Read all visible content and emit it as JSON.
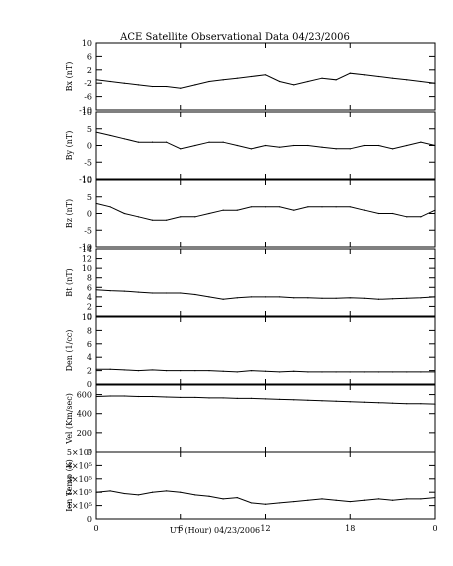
{
  "chart_data": {
    "type": "line",
    "title": "ACE Satellite Observational Data   04/23/2006",
    "xlabel": "UT (Hour)   04/23/2006",
    "x_tick_labels": [
      "0",
      "6",
      "12",
      "18",
      "0"
    ],
    "xlim": [
      0,
      24
    ],
    "panels": [
      {
        "ylabel": "Bx (nT)",
        "ylim": [
          -10,
          10
        ],
        "y_ticks": [
          -10,
          -6,
          -2,
          2,
          6,
          10
        ],
        "y_tick_labels": [
          "-10",
          "-6",
          "-2",
          "2",
          "6",
          "10"
        ],
        "x": [
          0,
          1,
          2,
          3,
          4,
          5,
          6,
          7,
          8,
          9,
          10,
          11,
          12,
          13,
          14,
          15,
          16,
          17,
          18,
          19,
          20,
          21,
          22,
          23,
          24
        ],
        "values": [
          -1,
          -1.5,
          -2,
          -2.5,
          -3,
          -3,
          -3.5,
          -2.5,
          -1.5,
          -1,
          -0.5,
          0,
          0.5,
          -1.5,
          -2.5,
          -1.5,
          -0.5,
          -1,
          1,
          0.5,
          0,
          -0.5,
          -1,
          -1.5,
          -2
        ]
      },
      {
        "ylabel": "By (nT)",
        "ylim": [
          -10,
          10
        ],
        "y_ticks": [
          -10,
          -5,
          0,
          5,
          10
        ],
        "y_tick_labels": [
          "-10",
          "-5",
          "0",
          "5",
          "10"
        ],
        "x": [
          0,
          1,
          2,
          3,
          4,
          5,
          6,
          7,
          8,
          9,
          10,
          11,
          12,
          13,
          14,
          15,
          16,
          17,
          18,
          19,
          20,
          21,
          22,
          23,
          24
        ],
        "values": [
          4,
          3,
          2,
          1,
          1,
          1,
          -1,
          0,
          1,
          1,
          0,
          -1,
          0,
          -0.5,
          0,
          0,
          -0.5,
          -1,
          -1,
          0,
          0,
          -1,
          0,
          1,
          0
        ]
      },
      {
        "ylabel": "Bz (nT)",
        "ylim": [
          -10,
          10
        ],
        "y_ticks": [
          -10,
          -5,
          0,
          5,
          10
        ],
        "y_tick_labels": [
          "-10",
          "-5",
          "0",
          "5",
          "10"
        ],
        "x": [
          0,
          1,
          2,
          3,
          4,
          5,
          6,
          7,
          8,
          9,
          10,
          11,
          12,
          13,
          14,
          15,
          16,
          17,
          18,
          19,
          20,
          21,
          22,
          23,
          24
        ],
        "values": [
          3,
          2,
          0,
          -1,
          -2,
          -2,
          -1,
          -1,
          0,
          1,
          1,
          2,
          2,
          2,
          1,
          2,
          2,
          2,
          2,
          1,
          0,
          0,
          -1,
          -1,
          1
        ]
      },
      {
        "ylabel": "Bt (nT)",
        "ylim": [
          0,
          14
        ],
        "y_ticks": [
          0,
          2,
          4,
          6,
          8,
          10,
          12,
          14
        ],
        "y_tick_labels": [
          "0",
          "2",
          "4",
          "6",
          "8",
          "10",
          "12",
          "14"
        ],
        "x": [
          0,
          1,
          2,
          3,
          4,
          5,
          6,
          7,
          8,
          9,
          10,
          11,
          12,
          13,
          14,
          15,
          16,
          17,
          18,
          19,
          20,
          21,
          22,
          23,
          24
        ],
        "values": [
          5.5,
          5.3,
          5.2,
          5,
          4.8,
          4.8,
          4.8,
          4.5,
          4,
          3.5,
          3.8,
          4,
          4,
          4,
          3.8,
          3.8,
          3.7,
          3.7,
          3.8,
          3.7,
          3.5,
          3.6,
          3.7,
          3.8,
          4
        ]
      },
      {
        "ylabel": "Den (1/cc)",
        "ylim": [
          0,
          10
        ],
        "y_ticks": [
          0,
          2,
          4,
          6,
          8,
          10
        ],
        "y_tick_labels": [
          "0",
          "2",
          "4",
          "6",
          "8",
          "10"
        ],
        "x": [
          0,
          1,
          2,
          3,
          4,
          5,
          6,
          7,
          8,
          9,
          10,
          11,
          12,
          13,
          14,
          15,
          16,
          17,
          18,
          19,
          20,
          21,
          22,
          23,
          24
        ],
        "values": [
          2.2,
          2.2,
          2.1,
          2,
          2.1,
          2,
          2,
          2,
          2,
          1.9,
          1.8,
          2,
          1.9,
          1.8,
          1.9,
          1.8,
          1.8,
          1.8,
          1.8,
          1.8,
          1.8,
          1.8,
          1.8,
          1.8,
          1.8
        ]
      },
      {
        "ylabel": "Vel (Km/sec)",
        "ylim": [
          0,
          700
        ],
        "y_ticks": [
          0,
          200,
          400,
          600
        ],
        "y_tick_labels": [
          "0",
          "200",
          "400",
          "600"
        ],
        "x": [
          0,
          1,
          2,
          3,
          4,
          5,
          6,
          7,
          8,
          9,
          10,
          11,
          12,
          13,
          14,
          15,
          16,
          17,
          18,
          19,
          20,
          21,
          22,
          23,
          24
        ],
        "values": [
          580,
          585,
          585,
          580,
          580,
          575,
          570,
          570,
          565,
          565,
          560,
          560,
          555,
          550,
          545,
          540,
          535,
          530,
          525,
          520,
          515,
          510,
          505,
          505,
          500
        ]
      },
      {
        "ylabel": "Ion Temp (K)",
        "ylim": [
          0,
          500000
        ],
        "y_ticks": [
          0,
          100000,
          200000,
          300000,
          400000,
          500000
        ],
        "y_tick_labels": [
          "0",
          "1×10⁵",
          "2×10⁵",
          "3×10⁵",
          "4×10⁵",
          "5×10⁵"
        ],
        "x": [
          0,
          1,
          2,
          3,
          4,
          5,
          6,
          7,
          8,
          9,
          10,
          11,
          12,
          13,
          14,
          15,
          16,
          17,
          18,
          19,
          20,
          21,
          22,
          23,
          24
        ],
        "values": [
          200000,
          210000,
          190000,
          180000,
          200000,
          210000,
          200000,
          180000,
          170000,
          150000,
          160000,
          120000,
          110000,
          120000,
          130000,
          140000,
          150000,
          140000,
          130000,
          140000,
          150000,
          140000,
          150000,
          150000,
          160000
        ]
      }
    ]
  }
}
